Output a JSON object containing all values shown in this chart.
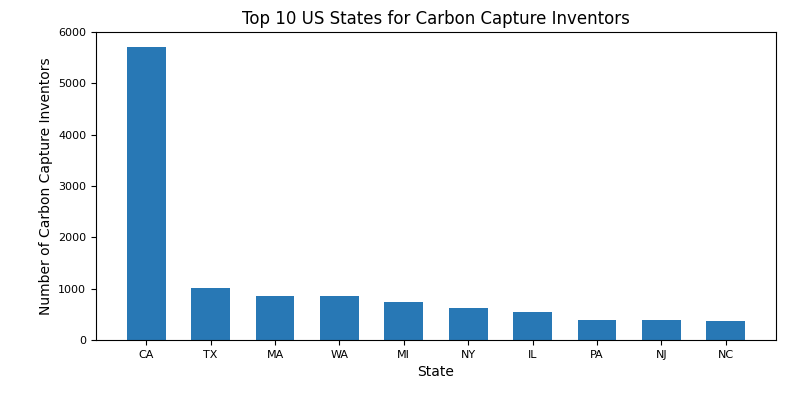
{
  "states": [
    "CA",
    "TX",
    "MA",
    "WA",
    "MI",
    "NY",
    "IL",
    "PA",
    "NJ",
    "NC"
  ],
  "values": [
    5700,
    1005,
    855,
    865,
    750,
    620,
    540,
    390,
    380,
    370
  ],
  "bar_color": "#2878b5",
  "title": "Top 10 US States for Carbon Capture Inventors",
  "xlabel": "State",
  "ylabel": "Number of Carbon Capture Inventors",
  "ylim": [
    0,
    6000
  ],
  "yticks": [
    0,
    1000,
    2000,
    3000,
    4000,
    5000,
    6000
  ],
  "figsize": [
    8.0,
    4.0
  ],
  "dpi": 100,
  "bar_width": 0.6,
  "title_fontsize": 12,
  "label_fontsize": 10,
  "tick_fontsize": 8
}
